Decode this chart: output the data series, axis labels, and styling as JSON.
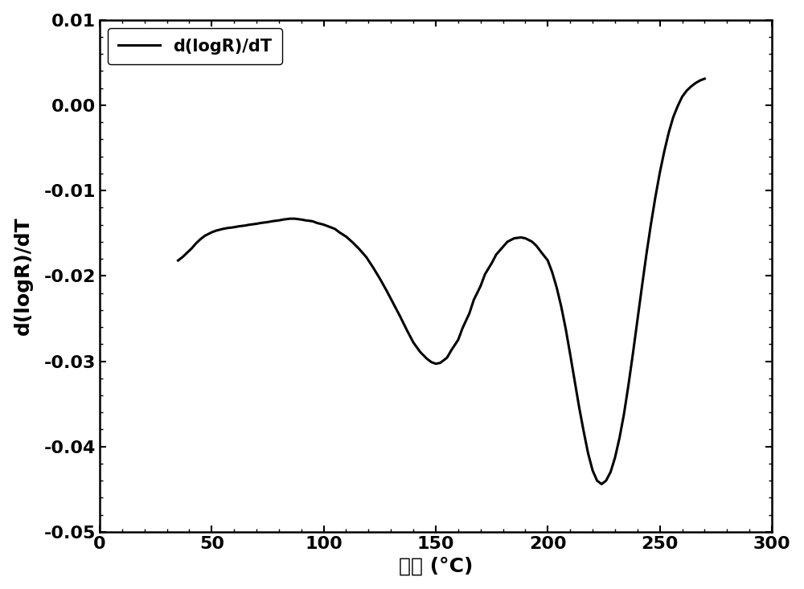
{
  "title": "",
  "xlabel": "温度 (°C)",
  "ylabel": "d(logR)/dT",
  "xlim": [
    0,
    300
  ],
  "ylim": [
    -0.05,
    0.01
  ],
  "xticks": [
    0,
    50,
    100,
    150,
    200,
    250,
    300
  ],
  "yticks": [
    -0.05,
    -0.04,
    -0.03,
    -0.02,
    -0.01,
    0.0,
    0.01
  ],
  "legend_label": "d(logR)/dT",
  "line_color": "#000000",
  "line_width": 2.2,
  "background_color": "#ffffff",
  "x_data": [
    35,
    37,
    39,
    41,
    43,
    45,
    47,
    50,
    52,
    55,
    57,
    60,
    62,
    65,
    67,
    70,
    72,
    75,
    77,
    80,
    82,
    85,
    87,
    90,
    92,
    95,
    97,
    100,
    102,
    105,
    107,
    110,
    113,
    116,
    119,
    122,
    125,
    128,
    131,
    134,
    137,
    140,
    143,
    146,
    148,
    150,
    152,
    155,
    157,
    160,
    162,
    165,
    167,
    170,
    172,
    175,
    177,
    180,
    182,
    185,
    188,
    190,
    193,
    195,
    197,
    200,
    202,
    204,
    206,
    208,
    210,
    212,
    214,
    216,
    218,
    220,
    222,
    224,
    226,
    228,
    230,
    232,
    234,
    236,
    238,
    240,
    242,
    244,
    246,
    248,
    250,
    252,
    254,
    256,
    258,
    260,
    262,
    264,
    266,
    268,
    270
  ],
  "y_data": [
    -0.0182,
    -0.0178,
    -0.0173,
    -0.0168,
    -0.0162,
    -0.0157,
    -0.0153,
    -0.0149,
    -0.0147,
    -0.0145,
    -0.0144,
    -0.0143,
    -0.0142,
    -0.0141,
    -0.014,
    -0.0139,
    -0.0138,
    -0.0137,
    -0.0136,
    -0.0135,
    -0.0134,
    -0.0133,
    -0.0133,
    -0.0134,
    -0.0135,
    -0.0136,
    -0.0138,
    -0.014,
    -0.0142,
    -0.0145,
    -0.0149,
    -0.0154,
    -0.0161,
    -0.0169,
    -0.0178,
    -0.019,
    -0.0203,
    -0.0217,
    -0.0232,
    -0.0247,
    -0.0263,
    -0.0278,
    -0.0289,
    -0.0297,
    -0.0301,
    -0.0303,
    -0.0302,
    -0.0296,
    -0.0287,
    -0.0275,
    -0.0261,
    -0.0244,
    -0.0228,
    -0.0212,
    -0.0198,
    -0.0185,
    -0.0175,
    -0.0166,
    -0.016,
    -0.0156,
    -0.0155,
    -0.0156,
    -0.016,
    -0.0165,
    -0.0172,
    -0.0182,
    -0.0196,
    -0.0214,
    -0.0236,
    -0.0262,
    -0.0292,
    -0.0323,
    -0.0354,
    -0.0382,
    -0.0408,
    -0.0428,
    -0.044,
    -0.0444,
    -0.044,
    -0.043,
    -0.0413,
    -0.039,
    -0.0362,
    -0.0328,
    -0.0291,
    -0.0252,
    -0.0213,
    -0.0175,
    -0.014,
    -0.0108,
    -0.0079,
    -0.0054,
    -0.0032,
    -0.0014,
    -0.0001,
    0.001,
    0.0017,
    0.0022,
    0.0026,
    0.0029,
    0.0031
  ]
}
